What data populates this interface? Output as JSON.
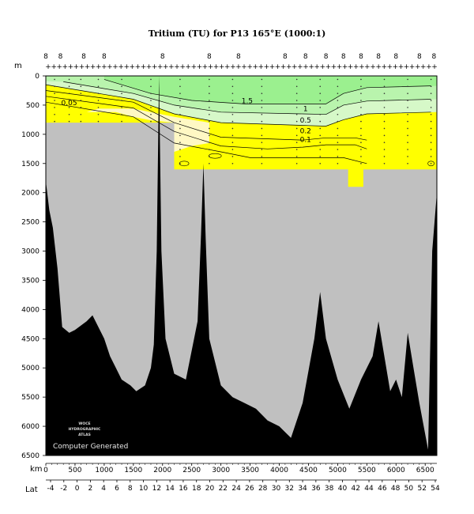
{
  "chart_data": {
    "type": "area",
    "title": "Tritium (TU) for P13 165°E (1000:1)",
    "xlabel": "km",
    "ylabel": "m",
    "secondary_xlabel": "Lat",
    "xlim": [
      0,
      6700
    ],
    "ylim": [
      6500,
      0
    ],
    "x_ticks": [
      "0",
      "500",
      "1000",
      "1500",
      "2000",
      "2500",
      "3000",
      "3500",
      "4000",
      "4500",
      "5000",
      "5500",
      "6000",
      "6500"
    ],
    "y_ticks": [
      "0",
      "500",
      "1000",
      "1500",
      "2000",
      "2500",
      "3000",
      "3500",
      "4000",
      "4500",
      "5000",
      "5500",
      "6000",
      "6500"
    ],
    "lat_ticks": [
      "-4",
      "-2",
      "0",
      "2",
      "4",
      "6",
      "8",
      "10",
      "12",
      "14",
      "16",
      "18",
      "20",
      "22",
      "24",
      "26",
      "28",
      "30",
      "32",
      "34",
      "36",
      "38",
      "40",
      "42",
      "44",
      "46",
      "48",
      "50",
      "52",
      "54"
    ],
    "station_labels": [
      "8",
      "8",
      "8",
      "8",
      "8",
      "8",
      "8",
      "8",
      "8",
      "8",
      "8",
      "8",
      "8",
      "8",
      "8",
      "8"
    ],
    "contour_levels": [
      "0.05",
      "0.1",
      "0.2",
      "0.5",
      "1",
      "1.5"
    ],
    "colors": {
      "high": "#9bf08f",
      "mid": "#b9f4ad",
      "low": "#d6f8c8",
      "lowest": "#ffff00",
      "trace": "#fff8c4",
      "nodata": "#c0c0c0",
      "bottom": "#000000"
    },
    "contours_km_depth": [
      {
        "level": "0.05",
        "points": [
          [
            0,
            450
          ],
          [
            1500,
            700
          ],
          [
            2200,
            1150
          ],
          [
            3000,
            1300
          ],
          [
            3500,
            1400
          ],
          [
            5100,
            1400
          ],
          [
            5500,
            1500
          ]
        ]
      },
      {
        "level": "0.1",
        "points": [
          [
            0,
            350
          ],
          [
            1500,
            550
          ],
          [
            2200,
            950
          ],
          [
            3000,
            1200
          ],
          [
            3800,
            1250
          ],
          [
            4400,
            1220
          ],
          [
            4800,
            1180
          ],
          [
            5300,
            1180
          ],
          [
            5500,
            1250
          ]
        ]
      },
      {
        "level": "0.2",
        "points": [
          [
            0,
            250
          ],
          [
            1500,
            450
          ],
          [
            2200,
            800
          ],
          [
            3000,
            1050
          ],
          [
            4400,
            1100
          ],
          [
            4800,
            1060
          ],
          [
            5300,
            1060
          ],
          [
            5500,
            1100
          ]
        ]
      },
      {
        "level": "0.5",
        "points": [
          [
            0,
            150
          ],
          [
            1500,
            400
          ],
          [
            2200,
            650
          ],
          [
            3000,
            800
          ],
          [
            4500,
            850
          ],
          [
            4800,
            860
          ],
          [
            5100,
            750
          ],
          [
            5500,
            650
          ],
          [
            6600,
            620
          ]
        ]
      },
      {
        "level": "1",
        "points": [
          [
            300,
            100
          ],
          [
            1500,
            300
          ],
          [
            2200,
            500
          ],
          [
            3000,
            620
          ],
          [
            4400,
            650
          ],
          [
            4800,
            660
          ],
          [
            5100,
            500
          ],
          [
            5500,
            430
          ],
          [
            6600,
            400
          ]
        ]
      },
      {
        "level": "1.5",
        "points": [
          [
            1000,
            60
          ],
          [
            1800,
            300
          ],
          [
            2500,
            420
          ],
          [
            3400,
            480
          ],
          [
            4800,
            480
          ],
          [
            5100,
            300
          ],
          [
            5500,
            200
          ],
          [
            6600,
            170
          ]
        ]
      }
    ],
    "bottom_depth_km_depth": [
      [
        0,
        1800
      ],
      [
        60,
        2300
      ],
      [
        120,
        2600
      ],
      [
        200,
        3300
      ],
      [
        280,
        4300
      ],
      [
        400,
        4400
      ],
      [
        500,
        4350
      ],
      [
        700,
        4200
      ],
      [
        800,
        4100
      ],
      [
        900,
        4300
      ],
      [
        1000,
        4500
      ],
      [
        1100,
        4800
      ],
      [
        1200,
        5000
      ],
      [
        1300,
        5200
      ],
      [
        1450,
        5300
      ],
      [
        1550,
        5400
      ],
      [
        1700,
        5300
      ],
      [
        1800,
        5000
      ],
      [
        1850,
        4600
      ],
      [
        1900,
        3000
      ],
      [
        1940,
        0
      ],
      [
        1980,
        3000
      ],
      [
        2050,
        4500
      ],
      [
        2200,
        5100
      ],
      [
        2400,
        5200
      ],
      [
        2600,
        4200
      ],
      [
        2660,
        2700
      ],
      [
        2700,
        1500
      ],
      [
        2740,
        2800
      ],
      [
        2800,
        4500
      ],
      [
        3000,
        5300
      ],
      [
        3200,
        5500
      ],
      [
        3400,
        5600
      ],
      [
        3600,
        5700
      ],
      [
        3800,
        5900
      ],
      [
        4000,
        6000
      ],
      [
        4200,
        6200
      ],
      [
        4400,
        5600
      ],
      [
        4600,
        4500
      ],
      [
        4700,
        3700
      ],
      [
        4800,
        4500
      ],
      [
        5000,
        5200
      ],
      [
        5200,
        5700
      ],
      [
        5400,
        5200
      ],
      [
        5600,
        4800
      ],
      [
        5700,
        4200
      ],
      [
        5800,
        4800
      ],
      [
        5900,
        5400
      ],
      [
        6000,
        5200
      ],
      [
        6100,
        5500
      ],
      [
        6200,
        4400
      ],
      [
        6300,
        5000
      ],
      [
        6400,
        5600
      ],
      [
        6550,
        6400
      ],
      [
        6620,
        3000
      ],
      [
        6700,
        2000
      ]
    ]
  },
  "watermark": {
    "line1": "WOCE",
    "line2": "HYDROGRAPHIC",
    "line3": "ATLAS",
    "credit": "Computer Generated"
  }
}
